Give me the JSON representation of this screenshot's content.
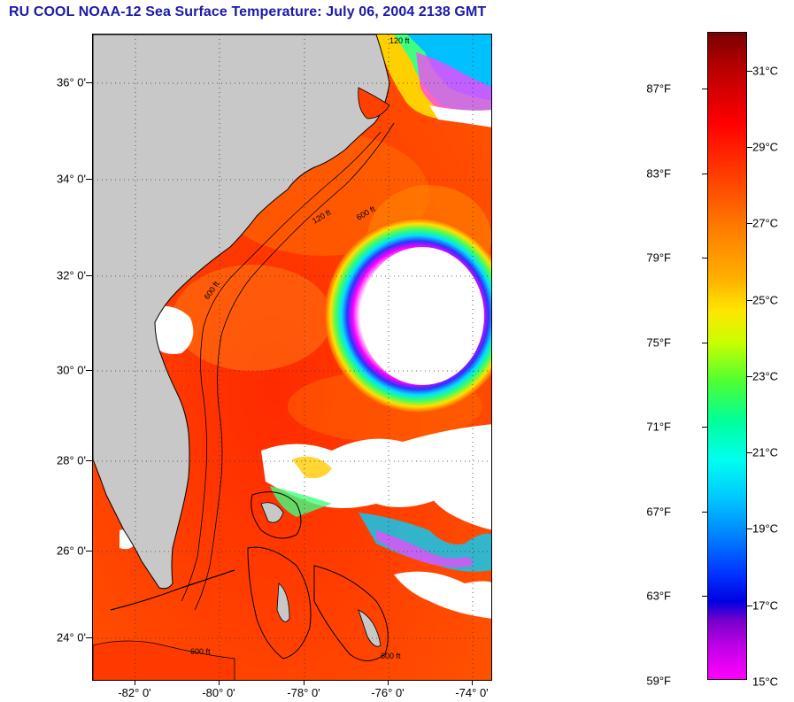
{
  "header": {
    "title": "RU COOL  NOAA-12  Sea Surface Temperature:  July 06, 2004 2138 GMT"
  },
  "map": {
    "latitude_labels": [
      {
        "lat": 36,
        "label": "36° 0'"
      },
      {
        "lat": 34,
        "label": "34° 0'"
      },
      {
        "lat": 32,
        "label": "32° 0'"
      },
      {
        "lat": 30,
        "label": "30° 0'"
      },
      {
        "lat": 28,
        "label": "28° 0'"
      },
      {
        "lat": 26,
        "label": "26° 0'"
      },
      {
        "lat": 24,
        "label": "24° 0'"
      }
    ],
    "longitude_labels": [
      {
        "lon": -82,
        "label": "-82° 0'"
      },
      {
        "lon": -80,
        "label": "-80° 0'"
      },
      {
        "lon": -78,
        "label": "-78° 0'"
      },
      {
        "lon": -76,
        "label": "-76° 0'"
      },
      {
        "lon": -74,
        "label": "-74° 0'"
      }
    ],
    "isobath_labels": [
      "120 ft",
      "600 ft"
    ],
    "colors": {
      "land": "#c8c8c8",
      "cloud": "#ffffff",
      "ocean_warm": "#ff3c00",
      "coastline": "#000000",
      "grid": "#333333"
    }
  },
  "colorbar": {
    "fahrenheit_labels": [
      "87°F",
      "83°F",
      "79°F",
      "75°F",
      "71°F",
      "67°F",
      "63°F",
      "59°F"
    ],
    "celsius_labels": [
      "31°C",
      "29°C",
      "27°C",
      "25°C",
      "23°C",
      "21°C",
      "19°C",
      "17°C",
      "15°C"
    ]
  }
}
